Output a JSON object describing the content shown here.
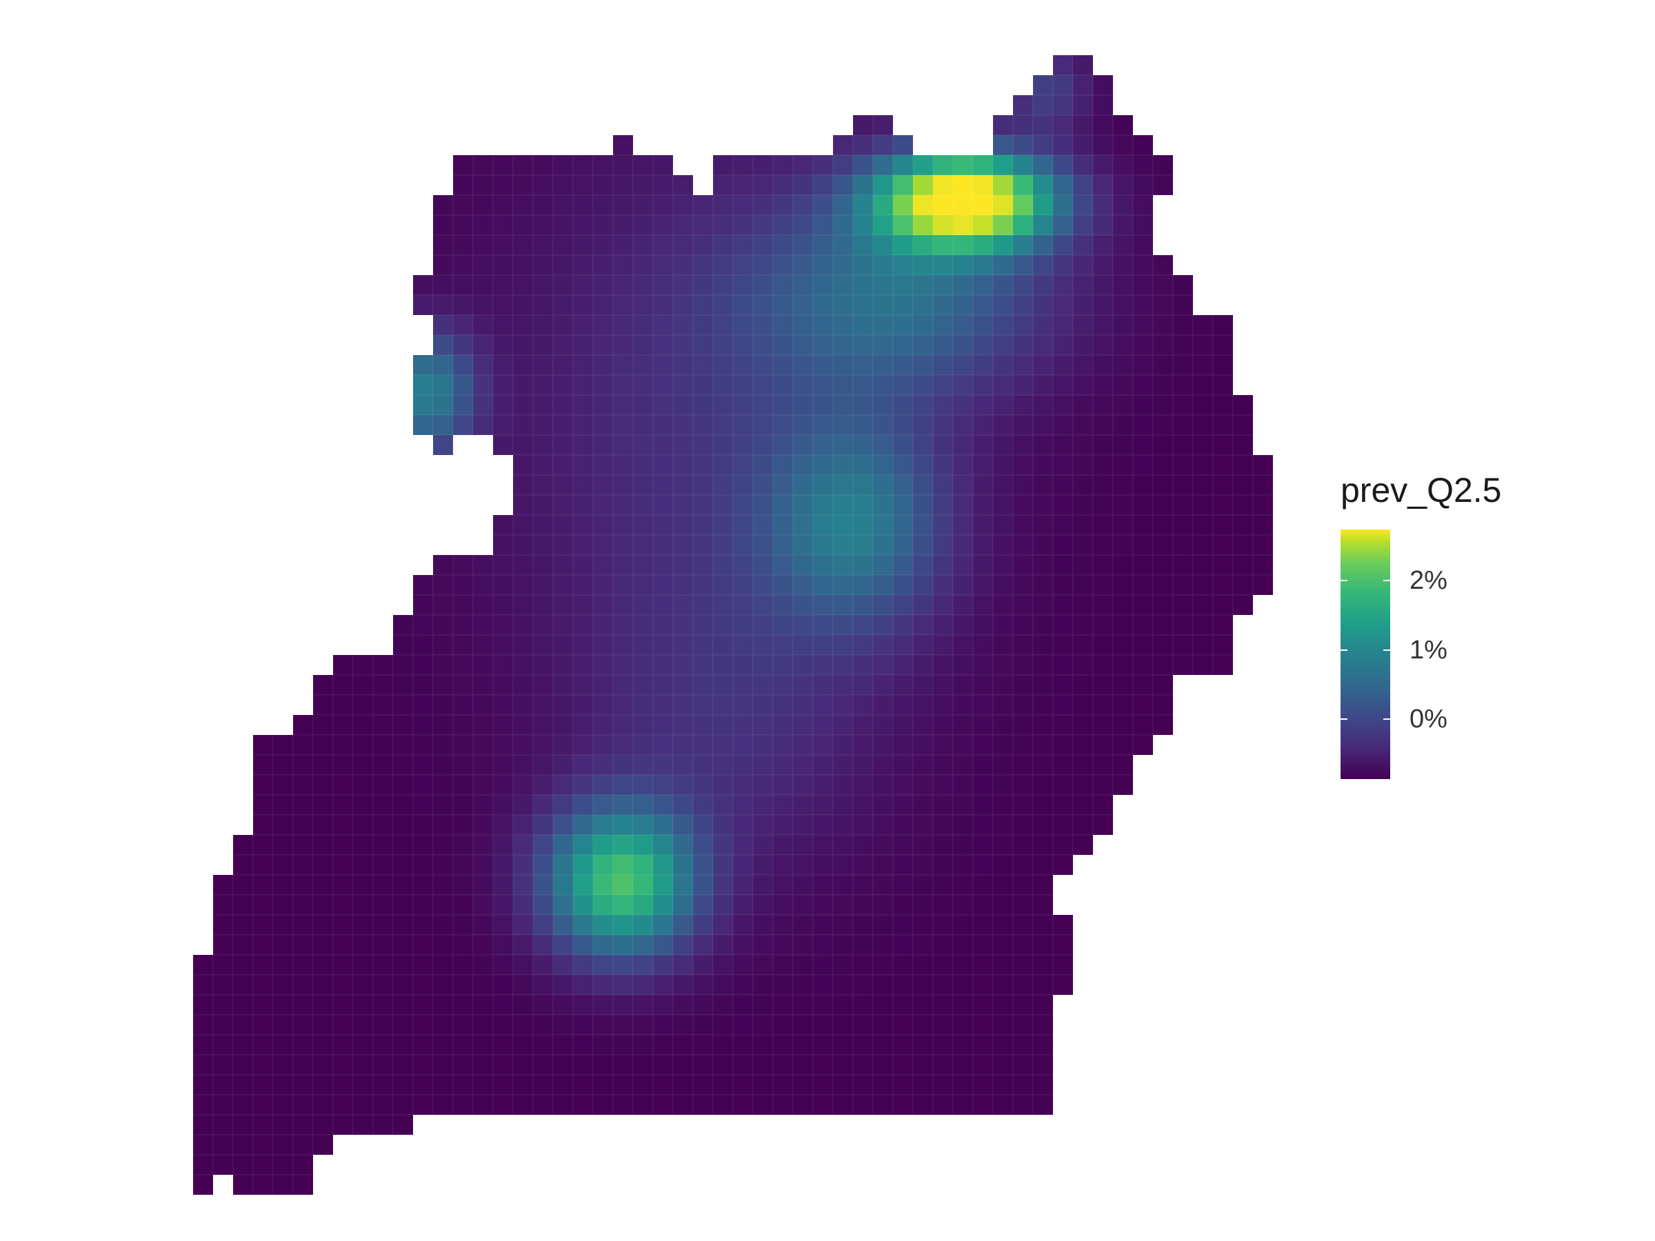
{
  "map": {
    "legend": {
      "title": "prev_Q2.5",
      "labels": [
        "2%",
        "1%",
        "0%"
      ],
      "colors": [
        "#440154",
        "#482878",
        "#3e4989",
        "#31688e",
        "#26828e",
        "#1f9e89",
        "#35b779",
        "#6ece58",
        "#b5de2b",
        "#fde725"
      ]
    }
  }
}
